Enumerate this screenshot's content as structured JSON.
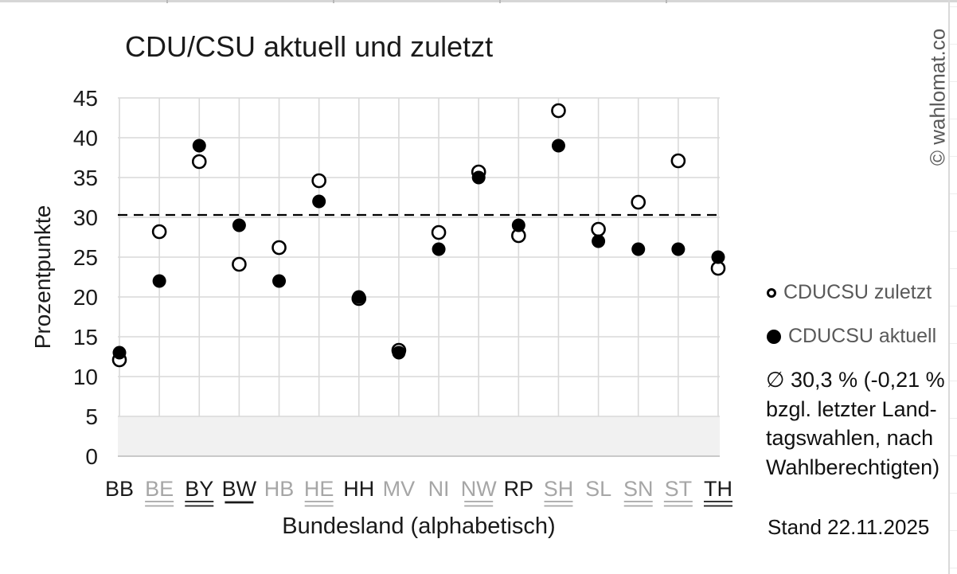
{
  "page": {
    "watermark": "© wahlomat.co",
    "stand": "Stand 22.11.2025"
  },
  "chart_data": {
    "type": "scatter",
    "title": "CDU/CSU aktuell und zuletzt",
    "xlabel": "Bundesland (alphabetisch)",
    "ylabel": "Prozentpunkte",
    "ylim": [
      0,
      45
    ],
    "yticks": [
      0,
      5,
      10,
      15,
      20,
      25,
      30,
      35,
      40,
      45
    ],
    "grid": true,
    "shaded_band": [
      0,
      5
    ],
    "mean_line": 30.3,
    "legend_position": "right",
    "categories": [
      {
        "label": "BB",
        "shade": "black",
        "underline": "none"
      },
      {
        "label": "BE",
        "shade": "gray",
        "underline": "double"
      },
      {
        "label": "BY",
        "shade": "black",
        "underline": "double"
      },
      {
        "label": "BW",
        "shade": "black",
        "underline": "single"
      },
      {
        "label": "HB",
        "shade": "gray",
        "underline": "none"
      },
      {
        "label": "HE",
        "shade": "gray",
        "underline": "double"
      },
      {
        "label": "HH",
        "shade": "black",
        "underline": "none"
      },
      {
        "label": "MV",
        "shade": "gray",
        "underline": "none"
      },
      {
        "label": "NI",
        "shade": "gray",
        "underline": "none"
      },
      {
        "label": "NW",
        "shade": "gray",
        "underline": "double"
      },
      {
        "label": "RP",
        "shade": "black",
        "underline": "none"
      },
      {
        "label": "SH",
        "shade": "gray",
        "underline": "double"
      },
      {
        "label": "SL",
        "shade": "gray",
        "underline": "none"
      },
      {
        "label": "SN",
        "shade": "gray",
        "underline": "double"
      },
      {
        "label": "ST",
        "shade": "gray",
        "underline": "double"
      },
      {
        "label": "TH",
        "shade": "black",
        "underline": "double"
      }
    ],
    "series": [
      {
        "name": "CDUCSU zuletzt",
        "marker": "open",
        "values": [
          12.1,
          28.2,
          37.0,
          24.1,
          26.2,
          34.6,
          19.8,
          13.3,
          28.1,
          35.7,
          27.7,
          43.4,
          28.5,
          31.9,
          37.1,
          23.6
        ]
      },
      {
        "name": "CDUCSU aktuell",
        "marker": "filled",
        "values": [
          13,
          22,
          39,
          29,
          22,
          32,
          20,
          13,
          26,
          35,
          29,
          39,
          27,
          26,
          26,
          25
        ]
      }
    ],
    "annotation": {
      "text": "∅ 30,3 % (-0,21 % bzgl. letzter Landtagswahlen, nach Wahlberechtigten)",
      "lines": [
        "∅ 30,3 % (-0,21 %",
        "bzgl. letzter Land-",
        "tagswahlen, nach",
        "Wahlberechtigten)"
      ]
    },
    "colors": {
      "point": "#000000",
      "grid": "#d9d9d9",
      "band": "#f1f1f1",
      "axis_text": "#1a1a1a",
      "gray_label": "#a6a6a6",
      "legend_text": "#595959"
    }
  }
}
